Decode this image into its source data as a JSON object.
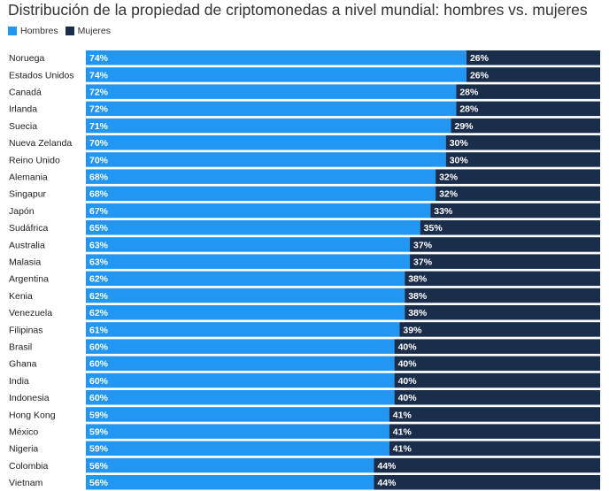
{
  "chart_data": {
    "type": "bar",
    "orientation": "horizontal",
    "stacked": true,
    "normalized": true,
    "title": "Distribución de la propiedad de criptomonedas a nivel mundial: hombres vs. mujeres",
    "categories": [
      "Noruega",
      "Estados Unidos",
      "Canadá",
      "Irlanda",
      "Suecia",
      "Nueva Zelanda",
      "Reino Unido",
      "Alemania",
      "Singapur",
      "Japón",
      "Sudáfrica",
      "Australia",
      "Malasia",
      "Argentina",
      "Kenia",
      "Venezuela",
      "Filipinas",
      "Brasil",
      "Ghana",
      "India",
      "Indonesia",
      "Hong Kong",
      "México",
      "Nigeria",
      "Colombia",
      "Vietnam"
    ],
    "series": [
      {
        "name": "Hombres",
        "color": "#2196f3",
        "values": [
          74,
          74,
          72,
          72,
          71,
          70,
          70,
          68,
          68,
          67,
          65,
          63,
          63,
          62,
          62,
          62,
          61,
          60,
          60,
          60,
          60,
          59,
          59,
          59,
          56,
          56
        ]
      },
      {
        "name": "Mujeres",
        "color": "#1a2d4b",
        "values": [
          26,
          26,
          28,
          28,
          29,
          30,
          30,
          32,
          32,
          33,
          35,
          37,
          37,
          38,
          38,
          38,
          39,
          40,
          40,
          40,
          40,
          41,
          41,
          41,
          44,
          44
        ]
      }
    ],
    "value_suffix": "%",
    "xlim": [
      0,
      100
    ],
    "legend": "top-left",
    "grid": false
  }
}
